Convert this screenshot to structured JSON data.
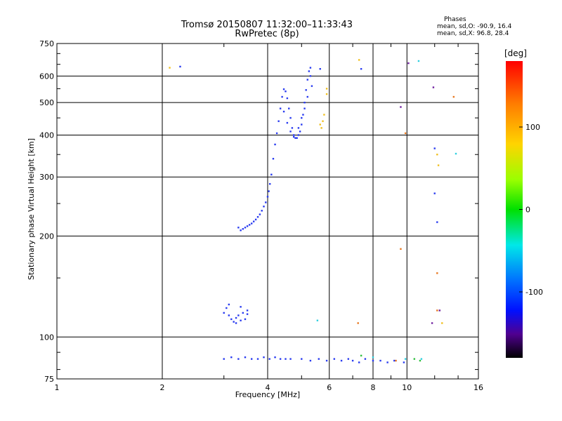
{
  "header": {
    "title": "Tromsø 20150807 11:32:00–11:33:43",
    "subtitle": "RwPretec (8p)",
    "stats_title": "Phases",
    "stats_o": "mean, sd,O: -90.9, 16.4",
    "stats_x": "mean, sd,X: 96.8, 28.4"
  },
  "chart_data": {
    "type": "scatter",
    "title": "Tromsø 20150807 11:32:00–11:33:43",
    "subtitle": "RwPretec (8p)",
    "xlabel": "Frequency [MHz]",
    "ylabel": "Stationary phase Virtual Height [km]",
    "x_scale": "log",
    "y_scale": "log",
    "xlim": [
      1,
      16
    ],
    "ylim": [
      75,
      750
    ],
    "x_ticks": [
      1,
      2,
      4,
      6,
      8,
      10,
      16
    ],
    "y_ticks": [
      75,
      100,
      200,
      300,
      400,
      500,
      600,
      750
    ],
    "grid": true,
    "colorbar": {
      "label": "[deg]",
      "range": [
        -180,
        180
      ],
      "ticks": [
        100,
        0,
        -100
      ],
      "colormap": "rainbow"
    },
    "series": [
      {
        "color": "#2a3cf0",
        "points": [
          [
            3.3,
            212
          ],
          [
            3.35,
            208
          ],
          [
            3.4,
            210
          ],
          [
            3.45,
            212
          ],
          [
            3.5,
            214
          ],
          [
            3.55,
            216
          ],
          [
            3.6,
            218
          ],
          [
            3.65,
            221
          ],
          [
            3.7,
            224
          ],
          [
            3.75,
            228
          ],
          [
            3.8,
            232
          ],
          [
            3.85,
            238
          ],
          [
            3.9,
            245
          ],
          [
            3.95,
            252
          ],
          [
            4.0,
            262
          ],
          [
            4.03,
            272
          ],
          [
            4.06,
            286
          ],
          [
            4.1,
            305
          ],
          [
            4.15,
            340
          ],
          [
            4.2,
            375
          ],
          [
            4.25,
            405
          ],
          [
            4.3,
            440
          ],
          [
            4.35,
            480
          ],
          [
            4.4,
            520
          ],
          [
            4.45,
            548
          ],
          [
            4.5,
            540
          ],
          [
            4.55,
            515
          ],
          [
            4.6,
            480
          ],
          [
            4.65,
            450
          ],
          [
            4.7,
            420
          ],
          [
            4.75,
            400
          ],
          [
            4.8,
            392
          ],
          [
            4.85,
            392
          ],
          [
            4.9,
            400
          ],
          [
            4.95,
            410
          ],
          [
            5.0,
            430
          ],
          [
            5.05,
            460
          ],
          [
            5.1,
            500
          ],
          [
            5.15,
            545
          ],
          [
            5.2,
            585
          ],
          [
            5.25,
            620
          ],
          [
            5.3,
            635
          ],
          [
            5.35,
            560
          ],
          [
            4.45,
            470
          ],
          [
            4.55,
            435
          ],
          [
            4.65,
            410
          ],
          [
            4.75,
            395
          ],
          [
            4.9,
            420
          ],
          [
            5.0,
            450
          ],
          [
            5.1,
            480
          ],
          [
            5.2,
            520
          ],
          [
            5.3,
            600
          ],
          [
            3.0,
            118
          ],
          [
            3.05,
            122
          ],
          [
            3.1,
            116
          ],
          [
            3.15,
            113
          ],
          [
            3.2,
            111
          ],
          [
            3.25,
            114
          ],
          [
            3.3,
            116
          ],
          [
            3.35,
            112
          ],
          [
            3.4,
            118
          ],
          [
            3.45,
            113
          ],
          [
            3.5,
            117
          ],
          [
            3.1,
            125
          ],
          [
            3.25,
            110
          ],
          [
            3.35,
            123
          ],
          [
            3.5,
            120
          ],
          [
            3.0,
            86
          ],
          [
            3.15,
            87
          ],
          [
            3.3,
            86
          ],
          [
            3.45,
            87
          ],
          [
            3.6,
            86
          ],
          [
            3.75,
            86
          ],
          [
            3.9,
            87
          ],
          [
            4.05,
            86
          ],
          [
            4.2,
            87
          ],
          [
            4.35,
            86
          ],
          [
            4.5,
            86
          ],
          [
            4.65,
            86
          ],
          [
            5.0,
            86
          ],
          [
            5.3,
            85
          ],
          [
            5.6,
            86
          ],
          [
            5.9,
            85
          ],
          [
            6.2,
            86
          ],
          [
            6.5,
            85
          ],
          [
            6.8,
            86
          ],
          [
            7.0,
            85
          ],
          [
            7.3,
            84
          ],
          [
            7.6,
            86
          ],
          [
            8.0,
            85
          ],
          [
            8.4,
            85
          ],
          [
            8.8,
            84
          ],
          [
            9.2,
            85
          ],
          [
            9.8,
            84
          ],
          [
            2.25,
            640
          ],
          [
            5.65,
            630
          ],
          [
            7.4,
            630
          ],
          [
            12.0,
            365
          ],
          [
            12.0,
            268
          ],
          [
            12.2,
            220
          ]
        ]
      },
      {
        "color": "#f0c020",
        "points": [
          [
            5.65,
            430
          ],
          [
            5.75,
            440
          ],
          [
            5.8,
            460
          ],
          [
            5.7,
            420
          ],
          [
            5.9,
            550
          ],
          [
            5.9,
            530
          ],
          [
            7.3,
            670
          ],
          [
            2.1,
            635
          ],
          [
            12.2,
            350
          ],
          [
            12.3,
            325
          ],
          [
            12.6,
            110
          ]
        ]
      },
      {
        "color": "#e87820",
        "points": [
          [
            7.25,
            110
          ],
          [
            9.9,
            405
          ],
          [
            9.6,
            183
          ],
          [
            12.2,
            155
          ],
          [
            13.6,
            520
          ],
          [
            12.2,
            120
          ],
          [
            9.3,
            85
          ]
        ]
      },
      {
        "color": "#30d0e0",
        "points": [
          [
            5.55,
            112
          ],
          [
            10.8,
            665
          ],
          [
            13.8,
            352
          ],
          [
            8.0,
            87
          ],
          [
            9.9,
            86
          ],
          [
            11.0,
            86
          ]
        ]
      },
      {
        "color": "#30c040",
        "points": [
          [
            10.5,
            86
          ],
          [
            10.9,
            85
          ],
          [
            7.4,
            88
          ]
        ]
      },
      {
        "color": "#7020a0",
        "points": [
          [
            10.1,
            655
          ],
          [
            11.9,
            555
          ],
          [
            9.6,
            485
          ],
          [
            11.8,
            110
          ],
          [
            12.4,
            120
          ]
        ]
      }
    ]
  }
}
